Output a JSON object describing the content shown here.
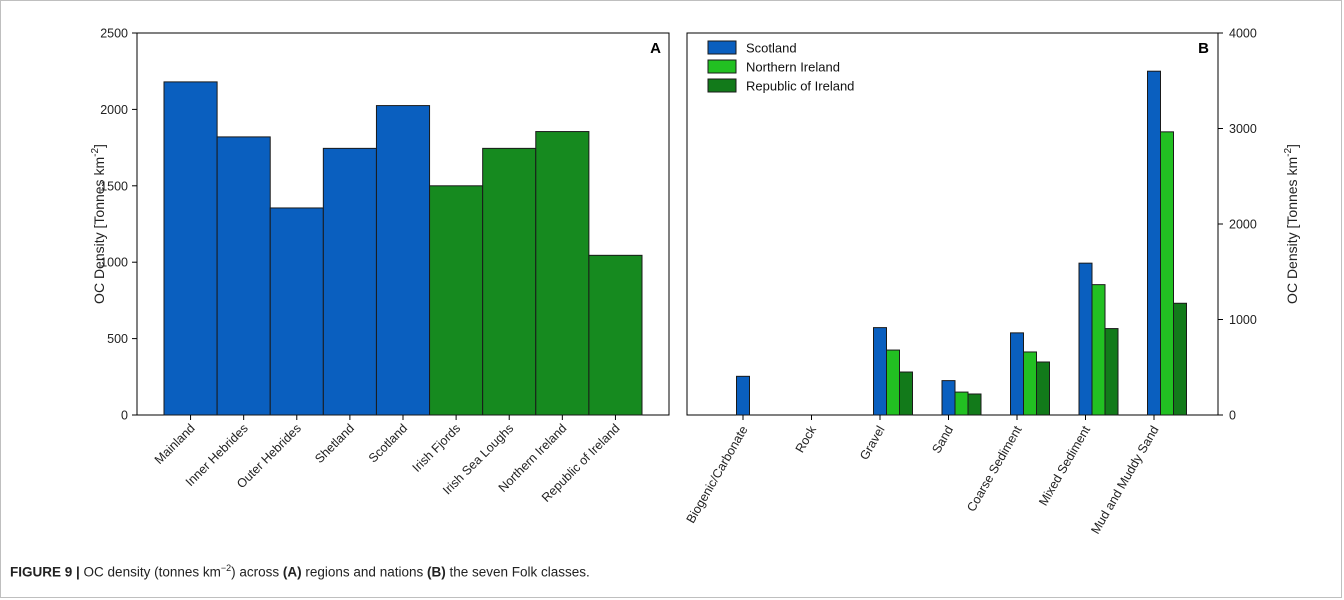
{
  "chart_data": [
    {
      "type": "bar",
      "panel_label": "A",
      "ylabel": "OC Density [Tonnes km",
      "ylabel_sup": "-2",
      "ylabel_end": "]",
      "ylim": [
        0,
        2500
      ],
      "yticks": [
        0,
        500,
        1000,
        1500,
        2000,
        2500
      ],
      "categories": [
        "Mainland",
        "Inner Hebrides",
        "Outer Hebrides",
        "Shetland",
        "Scotland",
        "Irish Fjords",
        "Irish Sea Loughs",
        "Northern Ireland",
        "Republic of Ireland"
      ],
      "values": [
        2180,
        1820,
        1355,
        1745,
        2025,
        1500,
        1745,
        1855,
        1045
      ],
      "bar_colors": [
        "#0a5fbf",
        "#0a5fbf",
        "#0a5fbf",
        "#0a5fbf",
        "#0a5fbf",
        "#168a1f",
        "#168a1f",
        "#168a1f",
        "#168a1f"
      ]
    },
    {
      "type": "bar",
      "panel_label": "B",
      "ylabel": "OC Density [Tonnes km",
      "ylabel_sup": "-2",
      "ylabel_end": "]",
      "ylim": [
        0,
        4000
      ],
      "yticks": [
        0,
        1000,
        2000,
        3000,
        4000
      ],
      "legend_position": "top-left",
      "categories": [
        "Biogenic/Carbonate",
        "Rock",
        "Gravel",
        "Sand",
        "Coarse Sediment",
        "Mixed Sediment",
        "Mud and Muddy Sand"
      ],
      "series": [
        {
          "name": "Scotland",
          "color": "#0a5fbf",
          "values": [
            405,
            0,
            915,
            360,
            860,
            1590,
            3600
          ]
        },
        {
          "name": "Northern Ireland",
          "color": "#22c022",
          "values": [
            0,
            0,
            680,
            240,
            660,
            1365,
            2965
          ]
        },
        {
          "name": "Republic of Ireland",
          "color": "#127a1a",
          "values": [
            0,
            0,
            450,
            220,
            555,
            905,
            1170
          ]
        }
      ]
    }
  ],
  "caption": {
    "label": "FIGURE 9 |",
    "text1": " OC density (tonnes km",
    "sup": "−2",
    "text2": ") across ",
    "bold_a": "(A)",
    "text3": " regions and nations ",
    "bold_b": "(B)",
    "text4": " the seven Folk classes."
  }
}
